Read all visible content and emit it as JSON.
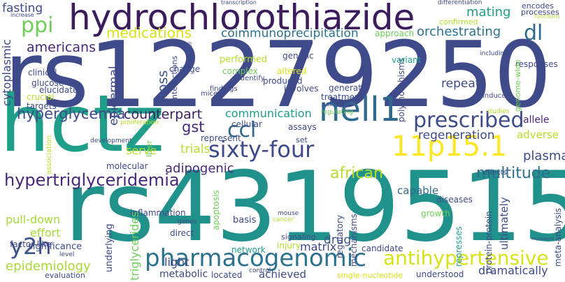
{
  "words": {
    "rs12279250": "rs12279250",
    "rs4319515": "rs4319515",
    "hctz": "hctz",
    "hydrochlorothiazide": "hydrochlorothiazide",
    "nell1": "nell1",
    "sixty_four": "sixty-four",
    "pharmacogenomic": "pharmacogenomic",
    "11p15_1": "11p15.1",
    "prescribed": "prescribed",
    "antihypertensive": "antihypertensive",
    "hypertriglyceridemia": "hypertriglyceridemia",
    "ccl": "ccl",
    "y2h": "y2h",
    "multitude": "multitude",
    "african": "african",
    "dl": "dl",
    "ppi": "ppi",
    "fasting": "fasting",
    "mating": "mating",
    "orchestrating": "orchestrating",
    "coimmunoprecipitation": "coimmunoprecipitation",
    "medications": "medications",
    "americans": "americans",
    "hyperglycemia": "hyperglycemia",
    "counterpart": "counterpart",
    "communication": "communication",
    "gst": "gst",
    "regeneration": "regeneration",
    "adipogenic": "adipogenic",
    "epidemiology": "epidemiology",
    "pull_down": "pull-down",
    "effort": "effort",
    "trials": "trials",
    "drug": "drug",
    "matrix": "matrix",
    "plasma": "plasma",
    "dramatically": "dramatically",
    "repeats": "repeats",
    "cross": "cross",
    "epidermal": "epidermal",
    "cytoplasmic": "cytoplasmic",
    "triglycerides": "triglycerides",
    "ultimately": "ultimately",
    "light": "light",
    "metabolic": "metabolic",
    "achieved": "achieved",
    "serve": "serve",
    "capable": "capable",
    "adverse": "adverse",
    "allele": "allele",
    "responses": "responses",
    "factor_like": "factor-like",
    "significance": "significance",
    "basis": "basis",
    "network": "network",
    "injury": "injury",
    "candidate": "candidate",
    "underlying": "underlying",
    "inflammation": "inflammation",
    "direct": "direct",
    "apoptosis": "apoptosis",
    "genes": "genes",
    "regulatory": "regulatory",
    "mechanisms": "mechanisms",
    "signaling": "signaling",
    "cancer": "cancer",
    "mouse": "mouse",
    "protein_protein": "protein-protein",
    "represses": "represses",
    "growth": "growth",
    "meta_analysis": "meta-analysis",
    "expression": "expression",
    "diseases": "diseases",
    "effects": "effects",
    "liver": "liver",
    "molecular": "molecular",
    "represent": "represent",
    "cellular": "cellular",
    "assays": "assays",
    "set": "set",
    "development": "development",
    "proliferation": "proliferation",
    "association": "association",
    "studies": "studies",
    "genome_wide": "genome-wide",
    "induced": "induced",
    "regulating": "regulating",
    "pathways": "pathways",
    "polymorphisms": "polymorphisms",
    "treatment": "treatment",
    "generate": "generate",
    "involves": "involves",
    "produced": "produced",
    "findings": "findings",
    "mice": "mice",
    "identify": "identify",
    "complex": "complex",
    "altered": "altered",
    "performed": "performed",
    "genetic": "genetic",
    "variant": "variant",
    "including": "including",
    "change": "change",
    "interactions": "interactions",
    "cell": "cell",
    "clinical": "clinical",
    "glucose": "glucose",
    "elucidate": "elucidate",
    "crucial": "crucial",
    "targets": "targets",
    "approach": "approach",
    "confirmed": "confirmed",
    "encodes": "encodes",
    "processes": "processes",
    "functions": "functions",
    "differentiation": "differentiation",
    "transcription": "transcription",
    "increase": "increase",
    "level": "level",
    "evaluation": "evaluation",
    "control": "control",
    "located": "located",
    "single_nucleotide": "single-nucleotide",
    "understood": "understood"
  },
  "palette": {
    "dark_purple": "#440154",
    "purple": "#482878",
    "indigo": "#3e4a89",
    "blue": "#31688e",
    "teal": "#26828e",
    "green_teal": "#1f9e89",
    "green": "#35b779",
    "light_green": "#6ece58",
    "lime": "#b5de2b",
    "yellow": "#fde725"
  }
}
